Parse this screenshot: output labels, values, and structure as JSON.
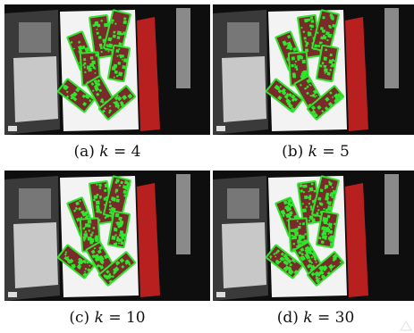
{
  "panels": [
    {
      "id": "a",
      "label": "(a)",
      "param": "k",
      "eq": "=",
      "value": "4",
      "green_fraction": 0.45
    },
    {
      "id": "b",
      "label": "(b)",
      "param": "k",
      "eq": "=",
      "value": "5",
      "green_fraction": 0.55
    },
    {
      "id": "c",
      "label": "(c)",
      "param": "k",
      "eq": "=",
      "value": "10",
      "green_fraction": 0.7
    },
    {
      "id": "d",
      "label": "(d)",
      "param": "k",
      "eq": "=",
      "value": "30",
      "green_fraction": 0.85
    }
  ],
  "colors": {
    "background": "#0e0e0e",
    "sheet": "#f3f3f3",
    "red_block": "#7a2a2a",
    "green": "#2ee62e",
    "brick": "#b82020",
    "gray_bar": "#8a8a8a"
  }
}
